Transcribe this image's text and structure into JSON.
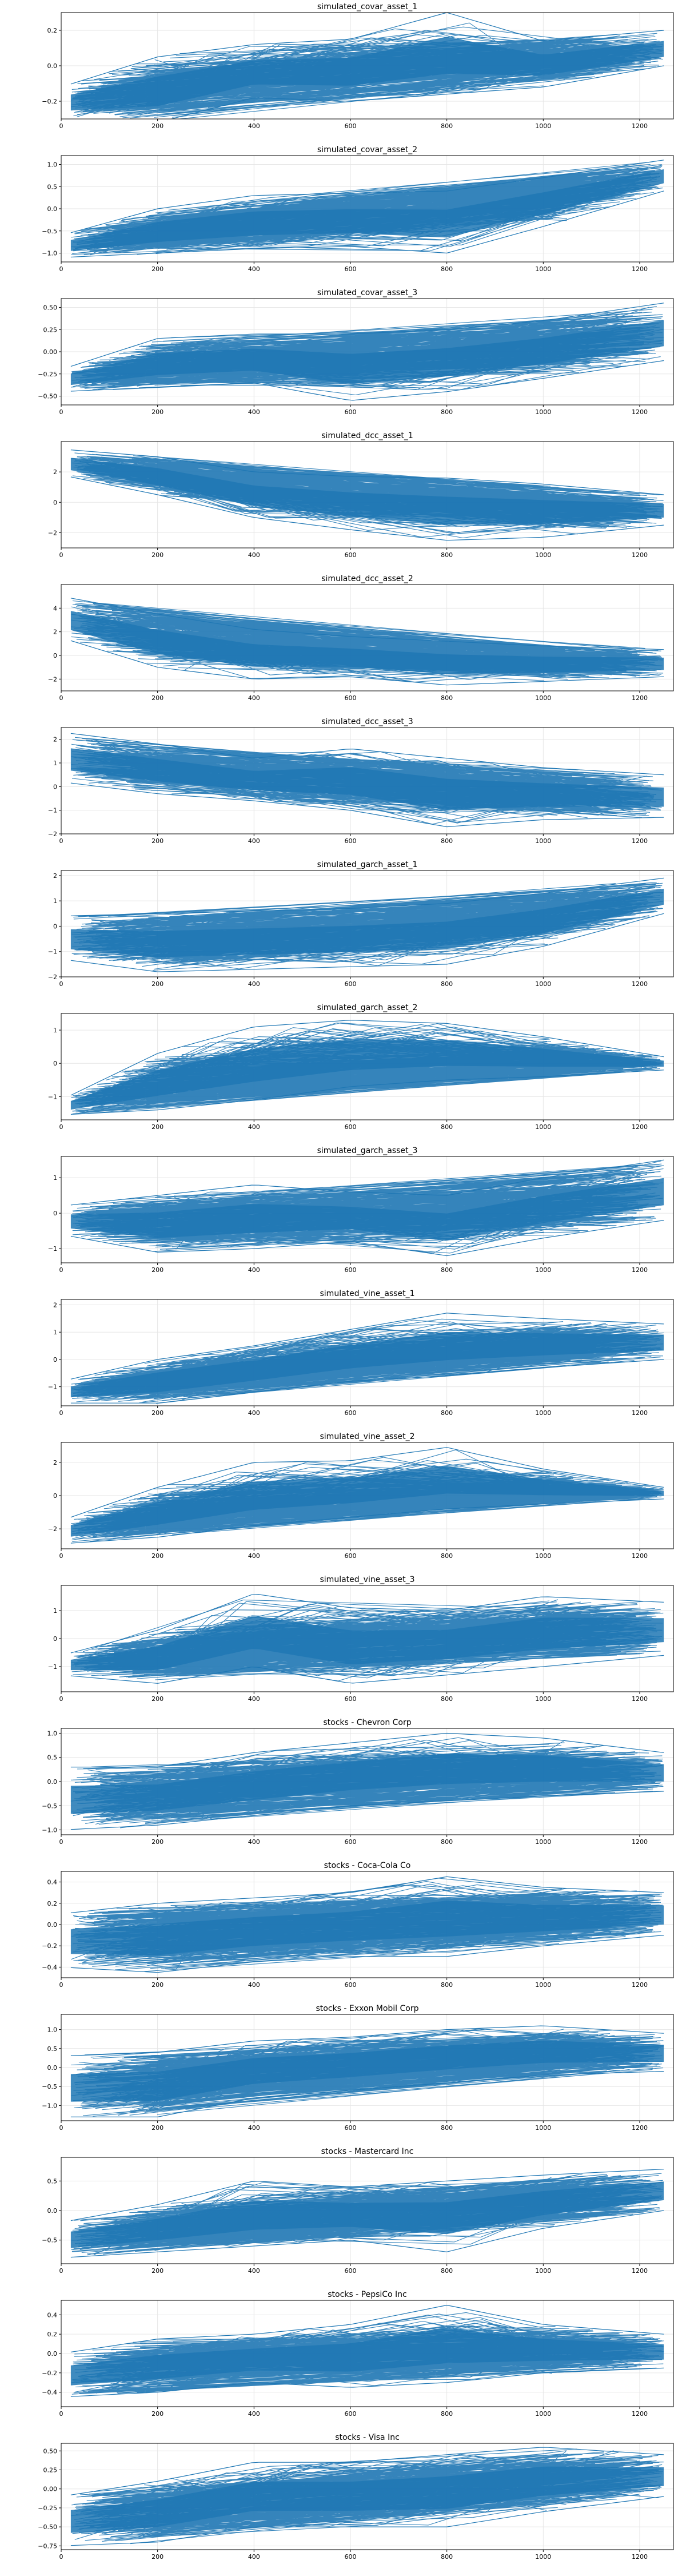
{
  "figure": {
    "line_color": "#1f77b4",
    "grid_color": "#e6e6e6",
    "axis_color": "#000000"
  },
  "chart_data": [
    {
      "type": "line",
      "title": "simulated_covar_asset_1",
      "xlim": [
        0,
        1270
      ],
      "ylim": [
        -0.3,
        0.3
      ],
      "x_ticks": [
        0,
        200,
        400,
        600,
        800,
        1000,
        1200
      ],
      "y_ticks": [
        -0.2,
        0.0,
        0.2
      ],
      "y_tick_labels": [
        "−0.2",
        "0.0",
        "0.2"
      ],
      "grid": true,
      "envelope_x": [
        0,
        200,
        400,
        600,
        800,
        1000,
        1250
      ],
      "upper": [
        -0.12,
        0.05,
        0.12,
        0.15,
        0.3,
        0.14,
        0.2
      ],
      "lower": [
        -0.3,
        -0.32,
        -0.18,
        -0.2,
        -0.16,
        -0.12,
        0.0
      ],
      "trend_start": [
        -0.2,
        0.0
      ],
      "trend_end": [
        0.02,
        0.1
      ]
    },
    {
      "type": "line",
      "title": "simulated_covar_asset_2",
      "xlim": [
        0,
        1270
      ],
      "ylim": [
        -1.2,
        1.2
      ],
      "x_ticks": [
        0,
        200,
        400,
        600,
        800,
        1000,
        1200
      ],
      "y_ticks": [
        -1.0,
        -0.5,
        0.0,
        0.5,
        1.0
      ],
      "y_tick_labels": [
        "−1.0",
        "−0.5",
        "0.0",
        "0.5",
        "1.0"
      ],
      "grid": true,
      "envelope_x": [
        0,
        200,
        400,
        600,
        800,
        1000,
        1250
      ],
      "upper": [
        -0.6,
        0.0,
        0.3,
        0.35,
        0.4,
        0.7,
        1.1
      ],
      "lower": [
        -1.1,
        -1.0,
        -0.9,
        -0.85,
        -1.0,
        -0.4,
        0.4
      ],
      "trend_start": [
        -0.9,
        -0.3
      ],
      "trend_end": [
        0.4,
        0.9
      ]
    },
    {
      "type": "line",
      "title": "simulated_covar_asset_3",
      "xlim": [
        0,
        1270
      ],
      "ylim": [
        -0.6,
        0.6
      ],
      "x_ticks": [
        0,
        200,
        400,
        600,
        800,
        1000,
        1200
      ],
      "y_ticks": [
        -0.5,
        -0.25,
        0.0,
        0.25,
        0.5
      ],
      "y_tick_labels": [
        "−0.50",
        "−0.25",
        "0.00",
        "0.25",
        "0.50"
      ],
      "grid": true,
      "envelope_x": [
        0,
        200,
        400,
        600,
        800,
        1000,
        1250
      ],
      "upper": [
        -0.2,
        0.15,
        0.2,
        0.2,
        0.25,
        0.35,
        0.55
      ],
      "lower": [
        -0.45,
        -0.4,
        -0.35,
        -0.55,
        -0.45,
        -0.3,
        -0.1
      ],
      "trend_start": [
        -0.35,
        -0.05
      ],
      "trend_end": [
        0.1,
        0.45
      ]
    },
    {
      "type": "line",
      "title": "simulated_dcc_asset_1",
      "xlim": [
        0,
        1270
      ],
      "ylim": [
        -3,
        4
      ],
      "x_ticks": [
        0,
        200,
        400,
        600,
        800,
        1000,
        1200
      ],
      "y_ticks": [
        -2,
        0,
        2
      ],
      "y_tick_labels": [
        "−2",
        "0",
        "2"
      ],
      "grid": true,
      "envelope_x": [
        0,
        200,
        400,
        600,
        800,
        1000,
        1250
      ],
      "upper": [
        3.5,
        3.0,
        2.0,
        1.7,
        1.6,
        1.2,
        0.5
      ],
      "lower": [
        1.8,
        0.5,
        -1.0,
        -1.8,
        -2.5,
        -2.3,
        -1.5
      ],
      "trend_start": [
        1.5,
        3.0
      ],
      "trend_end": [
        -1.2,
        0.2
      ]
    },
    {
      "type": "line",
      "title": "simulated_dcc_asset_2",
      "xlim": [
        0,
        1270
      ],
      "ylim": [
        -3,
        6
      ],
      "x_ticks": [
        0,
        200,
        400,
        600,
        800,
        1000,
        1200
      ],
      "y_ticks": [
        -2,
        0,
        2,
        4
      ],
      "y_tick_labels": [
        "−2",
        "0",
        "2",
        "4"
      ],
      "grid": true,
      "envelope_x": [
        0,
        200,
        400,
        600,
        800,
        1000,
        1250
      ],
      "upper": [
        5.0,
        3.5,
        2.2,
        1.6,
        1.2,
        0.8,
        0.5
      ],
      "lower": [
        1.5,
        -1.0,
        -2.0,
        -1.8,
        -2.5,
        -2.2,
        -1.8
      ],
      "trend_start": [
        1.5,
        4.0
      ],
      "trend_end": [
        -1.0,
        0.2
      ]
    },
    {
      "type": "line",
      "title": "simulated_dcc_asset_3",
      "xlim": [
        0,
        1270
      ],
      "ylim": [
        -2,
        2.5
      ],
      "x_ticks": [
        0,
        200,
        400,
        600,
        800,
        1000,
        1200
      ],
      "y_ticks": [
        -2,
        -1,
        0,
        1,
        2
      ],
      "y_tick_labels": [
        "−2",
        "−1",
        "0",
        "1",
        "2"
      ],
      "grid": true,
      "envelope_x": [
        0,
        200,
        400,
        600,
        800,
        1000,
        1250
      ],
      "upper": [
        2.3,
        1.8,
        1.2,
        1.6,
        1.2,
        0.8,
        0.5
      ],
      "lower": [
        0.2,
        -0.3,
        -0.6,
        -1.0,
        -1.7,
        -1.4,
        -1.3
      ],
      "trend_start": [
        0.4,
        2.0
      ],
      "trend_end": [
        -0.8,
        0.1
      ]
    },
    {
      "type": "line",
      "title": "simulated_garch_asset_1",
      "xlim": [
        0,
        1270
      ],
      "ylim": [
        -2,
        2.2
      ],
      "x_ticks": [
        0,
        200,
        400,
        600,
        800,
        1000,
        1200
      ],
      "y_ticks": [
        -2,
        -1,
        0,
        1,
        2
      ],
      "y_tick_labels": [
        "−2",
        "−1",
        "0",
        "1",
        "2"
      ],
      "grid": true,
      "envelope_x": [
        0,
        200,
        400,
        600,
        800,
        1000,
        1250
      ],
      "upper": [
        0.4,
        0.5,
        0.6,
        0.7,
        0.9,
        1.3,
        1.9
      ],
      "lower": [
        -1.3,
        -1.8,
        -1.7,
        -1.6,
        -1.5,
        -0.8,
        0.5
      ],
      "trend_start": [
        -1.0,
        0.2
      ],
      "trend_end": [
        0.8,
        1.6
      ]
    },
    {
      "type": "line",
      "title": "simulated_garch_asset_2",
      "xlim": [
        0,
        1270
      ],
      "ylim": [
        -1.7,
        1.5
      ],
      "x_ticks": [
        0,
        200,
        400,
        600,
        800,
        1000,
        1200
      ],
      "y_ticks": [
        -1,
        0,
        1
      ],
      "y_tick_labels": [
        "−1",
        "0",
        "1"
      ],
      "grid": true,
      "envelope_x": [
        0,
        200,
        400,
        600,
        800,
        1000,
        1250
      ],
      "upper": [
        -1.1,
        0.3,
        1.1,
        1.3,
        1.2,
        0.8,
        0.2
      ],
      "lower": [
        -1.55,
        -1.4,
        -1.1,
        -0.7,
        -0.5,
        -0.4,
        -0.2
      ],
      "trend_start": [
        -1.45,
        -1.1
      ],
      "trend_end": [
        -0.1,
        0.15
      ]
    },
    {
      "type": "line",
      "title": "simulated_garch_asset_3",
      "xlim": [
        0,
        1270
      ],
      "ylim": [
        -1.4,
        1.6
      ],
      "x_ticks": [
        0,
        200,
        400,
        600,
        800,
        1000,
        1200
      ],
      "y_ticks": [
        -1,
        0,
        1
      ],
      "y_tick_labels": [
        "−1",
        "0",
        "1"
      ],
      "grid": true,
      "envelope_x": [
        0,
        200,
        400,
        600,
        800,
        1000,
        1250
      ],
      "upper": [
        0.2,
        0.5,
        0.8,
        0.6,
        0.5,
        1.0,
        1.5
      ],
      "lower": [
        -0.6,
        -1.1,
        -1.0,
        -0.8,
        -1.2,
        -0.7,
        -0.2
      ],
      "trend_start": [
        -0.3,
        0.2
      ],
      "trend_end": [
        0.3,
        0.9
      ]
    },
    {
      "type": "line",
      "title": "simulated_vine_asset_1",
      "xlim": [
        0,
        1270
      ],
      "ylim": [
        -1.7,
        2.2
      ],
      "x_ticks": [
        0,
        200,
        400,
        600,
        800,
        1000,
        1200
      ],
      "y_ticks": [
        -1,
        0,
        1,
        2
      ],
      "y_tick_labels": [
        "−1",
        "0",
        "1",
        "2"
      ],
      "grid": true,
      "envelope_x": [
        0,
        200,
        400,
        600,
        800,
        1000,
        1250
      ],
      "upper": [
        -0.8,
        0.0,
        0.5,
        1.1,
        1.7,
        1.5,
        1.3
      ],
      "lower": [
        -1.6,
        -1.6,
        -1.2,
        -0.8,
        -0.6,
        -0.3,
        0.0
      ],
      "trend_start": [
        -1.3,
        -0.6
      ],
      "trend_end": [
        0.2,
        1.0
      ]
    },
    {
      "type": "line",
      "title": "simulated_vine_asset_2",
      "xlim": [
        0,
        1270
      ],
      "ylim": [
        -3.2,
        3.2
      ],
      "x_ticks": [
        0,
        200,
        400,
        600,
        800,
        1000,
        1200
      ],
      "y_ticks": [
        -2,
        0,
        2
      ],
      "y_tick_labels": [
        "−2",
        "0",
        "2"
      ],
      "grid": true,
      "envelope_x": [
        0,
        200,
        400,
        600,
        800,
        1000,
        1250
      ],
      "upper": [
        -1.5,
        0.5,
        2.0,
        2.1,
        2.9,
        1.6,
        0.5
      ],
      "lower": [
        -2.9,
        -2.5,
        -1.8,
        -1.3,
        -0.8,
        -0.5,
        -0.2
      ],
      "trend_start": [
        -2.5,
        -1.8
      ],
      "trend_end": [
        -0.2,
        0.4
      ]
    },
    {
      "type": "line",
      "title": "simulated_vine_asset_3",
      "xlim": [
        0,
        1270
      ],
      "ylim": [
        -1.9,
        1.9
      ],
      "x_ticks": [
        0,
        200,
        400,
        600,
        800,
        1000,
        1200
      ],
      "y_ticks": [
        -1,
        0,
        1
      ],
      "y_tick_labels": [
        "−1",
        "0",
        "1"
      ],
      "grid": true,
      "envelope_x": [
        0,
        200,
        400,
        600,
        800,
        1000,
        1250
      ],
      "upper": [
        -0.6,
        0.3,
        1.6,
        1.1,
        1.0,
        1.5,
        1.3
      ],
      "lower": [
        -1.3,
        -1.6,
        -1.0,
        -1.6,
        -1.3,
        -1.0,
        -0.6
      ],
      "trend_start": [
        -1.1,
        -0.4
      ],
      "trend_end": [
        -0.2,
        0.6
      ]
    },
    {
      "type": "line",
      "title": "stocks - Chevron Corp",
      "xlim": [
        0,
        1270
      ],
      "ylim": [
        -1.1,
        1.1
      ],
      "x_ticks": [
        0,
        200,
        400,
        600,
        800,
        1000,
        1200
      ],
      "y_ticks": [
        -1.0,
        -0.5,
        0.0,
        0.5,
        1.0
      ],
      "y_tick_labels": [
        "−1.0",
        "−0.5",
        "0.0",
        "0.5",
        "1.0"
      ],
      "grid": true,
      "envelope_x": [
        0,
        200,
        400,
        600,
        800,
        1000,
        1250
      ],
      "upper": [
        0.3,
        0.3,
        0.6,
        0.8,
        1.0,
        0.9,
        0.6
      ],
      "lower": [
        -1.0,
        -0.9,
        -0.7,
        -0.5,
        -0.4,
        -0.3,
        -0.2
      ],
      "trend_start": [
        -0.6,
        0.0
      ],
      "trend_end": [
        0.0,
        0.4
      ]
    },
    {
      "type": "line",
      "title": "stocks - Coca-Cola Co",
      "xlim": [
        0,
        1270
      ],
      "ylim": [
        -0.5,
        0.5
      ],
      "x_ticks": [
        0,
        200,
        400,
        600,
        800,
        1000,
        1200
      ],
      "y_ticks": [
        -0.4,
        -0.2,
        0.0,
        0.2,
        0.4
      ],
      "y_tick_labels": [
        "−0.4",
        "−0.2",
        "0.0",
        "0.2",
        "0.4"
      ],
      "grid": true,
      "envelope_x": [
        0,
        200,
        400,
        600,
        800,
        1000,
        1250
      ],
      "upper": [
        0.1,
        0.2,
        0.25,
        0.3,
        0.45,
        0.35,
        0.3
      ],
      "lower": [
        -0.4,
        -0.45,
        -0.35,
        -0.3,
        -0.3,
        -0.2,
        -0.1
      ],
      "trend_start": [
        -0.25,
        0.0
      ],
      "trend_end": [
        0.0,
        0.2
      ]
    },
    {
      "type": "line",
      "title": "stocks - Exxon Mobil Corp",
      "xlim": [
        0,
        1270
      ],
      "ylim": [
        -1.4,
        1.4
      ],
      "x_ticks": [
        0,
        200,
        400,
        600,
        800,
        1000,
        1200
      ],
      "y_ticks": [
        -1.0,
        -0.5,
        0.0,
        0.5,
        1.0
      ],
      "y_tick_labels": [
        "−1.0",
        "−0.5",
        "0.0",
        "0.5",
        "1.0"
      ],
      "grid": true,
      "envelope_x": [
        0,
        200,
        400,
        600,
        800,
        1000,
        1250
      ],
      "upper": [
        0.3,
        0.4,
        0.7,
        0.8,
        1.0,
        1.1,
        0.9
      ],
      "lower": [
        -1.3,
        -1.3,
        -0.8,
        -0.6,
        -0.4,
        -0.2,
        -0.1
      ],
      "trend_start": [
        -0.9,
        -0.2
      ],
      "trend_end": [
        0.0,
        0.6
      ]
    },
    {
      "type": "line",
      "title": "stocks - Mastercard Inc",
      "xlim": [
        0,
        1270
      ],
      "ylim": [
        -0.9,
        0.9
      ],
      "x_ticks": [
        0,
        200,
        400,
        600,
        800,
        1000,
        1200
      ],
      "y_ticks": [
        -0.5,
        0.0,
        0.5
      ],
      "y_tick_labels": [
        "−0.5",
        "0.0",
        "0.5"
      ],
      "grid": true,
      "envelope_x": [
        0,
        200,
        400,
        600,
        800,
        1000,
        1250
      ],
      "upper": [
        -0.2,
        0.1,
        0.5,
        0.4,
        0.5,
        0.6,
        0.7
      ],
      "lower": [
        -0.8,
        -0.7,
        -0.6,
        -0.5,
        -0.7,
        -0.3,
        0.0
      ],
      "trend_start": [
        -0.6,
        -0.2
      ],
      "trend_end": [
        0.1,
        0.5
      ]
    },
    {
      "type": "line",
      "title": "stocks - PepsiCo Inc",
      "xlim": [
        0,
        1270
      ],
      "ylim": [
        -0.55,
        0.55
      ],
      "x_ticks": [
        0,
        200,
        400,
        600,
        800,
        1000,
        1200
      ],
      "y_ticks": [
        -0.4,
        -0.2,
        0.0,
        0.2,
        0.4
      ],
      "y_tick_labels": [
        "−0.4",
        "−0.2",
        "0.0",
        "0.2",
        "0.4"
      ],
      "grid": true,
      "envelope_x": [
        0,
        200,
        400,
        600,
        800,
        1000,
        1250
      ],
      "upper": [
        0.0,
        0.15,
        0.2,
        0.3,
        0.5,
        0.3,
        0.2
      ],
      "lower": [
        -0.45,
        -0.4,
        -0.3,
        -0.35,
        -0.3,
        -0.2,
        -0.15
      ],
      "trend_start": [
        -0.3,
        0.0
      ],
      "trend_end": [
        -0.1,
        0.1
      ]
    },
    {
      "type": "line",
      "title": "stocks - Visa Inc",
      "xlim": [
        0,
        1270
      ],
      "ylim": [
        -0.8,
        0.6
      ],
      "x_ticks": [
        0,
        200,
        400,
        600,
        800,
        1000,
        1200
      ],
      "y_ticks": [
        -0.75,
        -0.5,
        -0.25,
        0.0,
        0.25,
        0.5
      ],
      "y_tick_labels": [
        "−0.75",
        "−0.50",
        "−0.25",
        "0.00",
        "0.25",
        "0.50"
      ],
      "grid": true,
      "envelope_x": [
        0,
        200,
        400,
        600,
        800,
        1000,
        1250
      ],
      "upper": [
        -0.1,
        0.1,
        0.35,
        0.35,
        0.45,
        0.55,
        0.45
      ],
      "lower": [
        -0.75,
        -0.7,
        -0.5,
        -0.5,
        -0.5,
        -0.3,
        -0.1
      ],
      "trend_start": [
        -0.5,
        -0.1
      ],
      "trend_end": [
        0.1,
        0.35
      ]
    }
  ]
}
